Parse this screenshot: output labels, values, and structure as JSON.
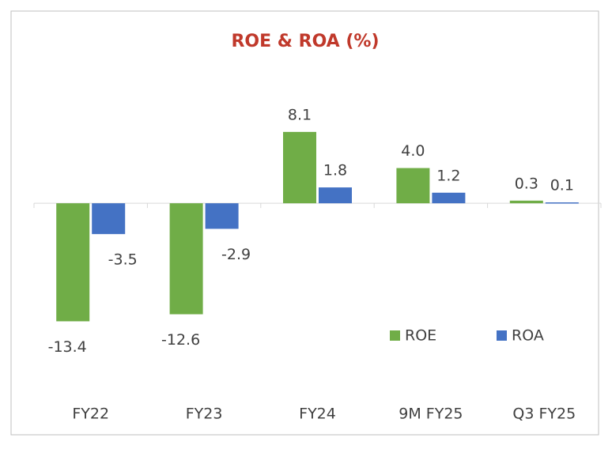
{
  "chart_data": {
    "type": "bar",
    "title": "ROE & ROA (%)",
    "categories": [
      "FY22",
      "FY23",
      "FY24",
      "9M FY25",
      "Q3 FY25"
    ],
    "series": [
      {
        "name": "ROE",
        "color": "#70ad47",
        "values": [
          -13.4,
          -12.6,
          8.1,
          4.0,
          0.3
        ]
      },
      {
        "name": "ROA",
        "color": "#4472c4",
        "values": [
          -3.5,
          -2.9,
          1.8,
          1.2,
          0.1
        ]
      }
    ],
    "value_labels": [
      [
        "-13.4",
        "-12.6",
        "8.1",
        "4.0",
        "0.3"
      ],
      [
        "-3.5",
        "-2.9",
        "1.8",
        "1.2",
        "0.1"
      ]
    ],
    "ylim": [
      -20,
      15
    ],
    "legend": "bottom-right",
    "title_color": "#c0392b"
  }
}
